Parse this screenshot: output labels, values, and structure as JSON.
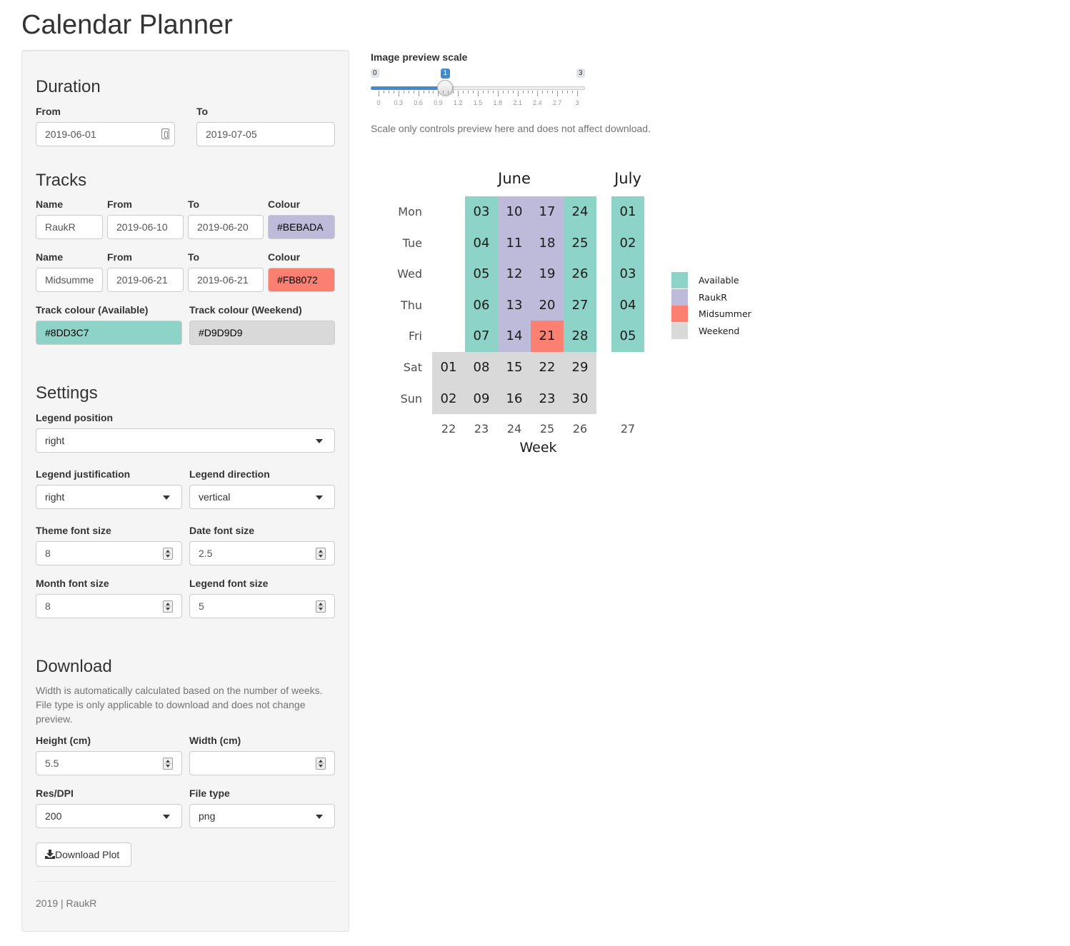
{
  "app": {
    "title": "Calendar Planner"
  },
  "sidebar": {
    "duration": {
      "heading": "Duration",
      "from_label": "From",
      "from_value": "2019-06-01",
      "to_label": "To",
      "to_value": "2019-07-05"
    },
    "tracks": {
      "heading": "Tracks",
      "rows": [
        {
          "name_label": "Name",
          "from_label": "From",
          "to_label": "To",
          "colour_label": "Colour",
          "name": "RaukR",
          "from": "2019-06-10",
          "to": "2019-06-20",
          "colour": "#BEBADA"
        },
        {
          "name_label": "Name",
          "from_label": "From",
          "to_label": "To",
          "colour_label": "Colour",
          "name": "Midsumme",
          "from": "2019-06-21",
          "to": "2019-06-21",
          "colour": "#FB8072"
        }
      ],
      "available_label": "Track colour (Available)",
      "available_colour": "#8DD3C7",
      "weekend_label": "Track colour (Weekend)",
      "weekend_colour": "#D9D9D9"
    },
    "settings": {
      "heading": "Settings",
      "legend_position_label": "Legend position",
      "legend_position": "right",
      "legend_justification_label": "Legend justification",
      "legend_justification": "right",
      "legend_direction_label": "Legend direction",
      "legend_direction": "vertical",
      "theme_font_label": "Theme font size",
      "theme_font": "8",
      "date_font_label": "Date font size",
      "date_font": "2.5",
      "month_font_label": "Month font size",
      "month_font": "8",
      "legend_font_label": "Legend font size",
      "legend_font": "5"
    },
    "download": {
      "heading": "Download",
      "help": "Width is automatically calculated based on the number of weeks. File type is only applicable to download and does not change preview.",
      "height_label": "Height (cm)",
      "height": "5.5",
      "width_label": "Width (cm)",
      "width": "",
      "dpi_label": "Res/DPI",
      "dpi": "200",
      "filetype_label": "File type",
      "filetype": "png",
      "button_label": "Download Plot"
    },
    "footer": "2019 | RaukR"
  },
  "main": {
    "slider": {
      "label": "Image preview scale",
      "min": 0,
      "max": 3,
      "value": 1,
      "min_label": "0",
      "max_label": "3",
      "value_label": "1",
      "tick_labels": [
        "0",
        "0.3",
        "0.6",
        "0.9",
        "1.2",
        "1.5",
        "1.8",
        "2.1",
        "2.4",
        "2.7",
        "3"
      ]
    },
    "note": "Scale only controls preview here and does not affect download."
  },
  "calendar": {
    "months": [
      "June",
      "July"
    ],
    "day_labels": [
      "Mon",
      "Tue",
      "Wed",
      "Thu",
      "Fri",
      "Sat",
      "Sun"
    ],
    "weeks": [
      "22",
      "23",
      "24",
      "25",
      "26",
      "27"
    ],
    "x_axis_title": "Week",
    "colors": {
      "Available": "#8DD3C7",
      "RaukR": "#BEBADA",
      "Midsummer": "#FB8072",
      "Weekend": "#D9D9D9"
    },
    "legend": [
      "Available",
      "RaukR",
      "Midsummer",
      "Weekend"
    ],
    "cells": [
      {
        "week": "22",
        "day": "Sat",
        "date": "01",
        "track": "Weekend"
      },
      {
        "week": "22",
        "day": "Sun",
        "date": "02",
        "track": "Weekend"
      },
      {
        "week": "23",
        "day": "Mon",
        "date": "03",
        "track": "Available"
      },
      {
        "week": "23",
        "day": "Tue",
        "date": "04",
        "track": "Available"
      },
      {
        "week": "23",
        "day": "Wed",
        "date": "05",
        "track": "Available"
      },
      {
        "week": "23",
        "day": "Thu",
        "date": "06",
        "track": "Available"
      },
      {
        "week": "23",
        "day": "Fri",
        "date": "07",
        "track": "Available"
      },
      {
        "week": "23",
        "day": "Sat",
        "date": "08",
        "track": "Weekend"
      },
      {
        "week": "23",
        "day": "Sun",
        "date": "09",
        "track": "Weekend"
      },
      {
        "week": "24",
        "day": "Mon",
        "date": "10",
        "track": "RaukR"
      },
      {
        "week": "24",
        "day": "Tue",
        "date": "11",
        "track": "RaukR"
      },
      {
        "week": "24",
        "day": "Wed",
        "date": "12",
        "track": "RaukR"
      },
      {
        "week": "24",
        "day": "Thu",
        "date": "13",
        "track": "RaukR"
      },
      {
        "week": "24",
        "day": "Fri",
        "date": "14",
        "track": "RaukR"
      },
      {
        "week": "24",
        "day": "Sat",
        "date": "15",
        "track": "Weekend"
      },
      {
        "week": "24",
        "day": "Sun",
        "date": "16",
        "track": "Weekend"
      },
      {
        "week": "25",
        "day": "Mon",
        "date": "17",
        "track": "RaukR"
      },
      {
        "week": "25",
        "day": "Tue",
        "date": "18",
        "track": "RaukR"
      },
      {
        "week": "25",
        "day": "Wed",
        "date": "19",
        "track": "RaukR"
      },
      {
        "week": "25",
        "day": "Thu",
        "date": "20",
        "track": "RaukR"
      },
      {
        "week": "25",
        "day": "Fri",
        "date": "21",
        "track": "Midsummer"
      },
      {
        "week": "25",
        "day": "Sat",
        "date": "22",
        "track": "Weekend"
      },
      {
        "week": "25",
        "day": "Sun",
        "date": "23",
        "track": "Weekend"
      },
      {
        "week": "26",
        "day": "Mon",
        "date": "24",
        "track": "Available"
      },
      {
        "week": "26",
        "day": "Tue",
        "date": "25",
        "track": "Available"
      },
      {
        "week": "26",
        "day": "Wed",
        "date": "26",
        "track": "Available"
      },
      {
        "week": "26",
        "day": "Thu",
        "date": "27",
        "track": "Available"
      },
      {
        "week": "26",
        "day": "Fri",
        "date": "28",
        "track": "Available"
      },
      {
        "week": "26",
        "day": "Sat",
        "date": "29",
        "track": "Weekend"
      },
      {
        "week": "26",
        "day": "Sun",
        "date": "30",
        "track": "Weekend"
      },
      {
        "week": "27",
        "day": "Mon",
        "date": "01",
        "track": "Available"
      },
      {
        "week": "27",
        "day": "Tue",
        "date": "02",
        "track": "Available"
      },
      {
        "week": "27",
        "day": "Wed",
        "date": "03",
        "track": "Available"
      },
      {
        "week": "27",
        "day": "Thu",
        "date": "04",
        "track": "Available"
      },
      {
        "week": "27",
        "day": "Fri",
        "date": "05",
        "track": "Available"
      }
    ]
  }
}
